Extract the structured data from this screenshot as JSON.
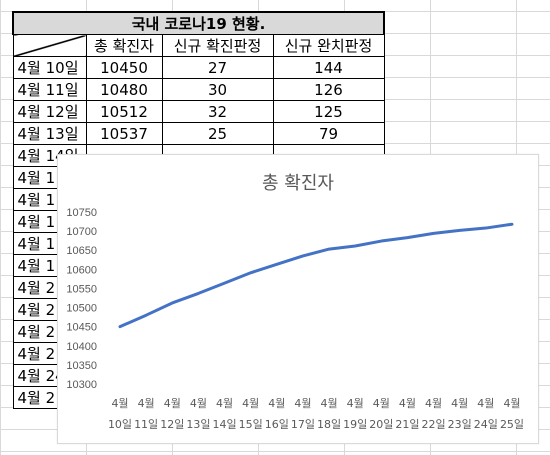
{
  "sheet": {
    "title": "국내 코로나19 현황.",
    "headers": [
      "",
      "총 확진자",
      "신규 확진판정",
      "신규 완치판정"
    ],
    "rows": [
      {
        "date": "4월 10일",
        "total": "10450",
        "new_confirmed": "27",
        "new_recovered": "144"
      },
      {
        "date": "4월 11일",
        "total": "10480",
        "new_confirmed": "30",
        "new_recovered": "126"
      },
      {
        "date": "4월 12일",
        "total": "10512",
        "new_confirmed": "32",
        "new_recovered": "125"
      },
      {
        "date": "4월 13일",
        "total": "10537",
        "new_confirmed": "25",
        "new_recovered": "79"
      },
      {
        "date": "4월 14일",
        "total": "",
        "new_confirmed": "",
        "new_recovered": ""
      },
      {
        "date": "4월 1",
        "total": "",
        "new_confirmed": "",
        "new_recovered": ""
      },
      {
        "date": "4월 1",
        "total": "",
        "new_confirmed": "",
        "new_recovered": ""
      },
      {
        "date": "4월 1",
        "total": "",
        "new_confirmed": "",
        "new_recovered": ""
      },
      {
        "date": "4월 1",
        "total": "",
        "new_confirmed": "",
        "new_recovered": ""
      },
      {
        "date": "4월 1",
        "total": "",
        "new_confirmed": "",
        "new_recovered": ""
      },
      {
        "date": "4월 2",
        "total": "",
        "new_confirmed": "",
        "new_recovered": ""
      },
      {
        "date": "4월 2",
        "total": "",
        "new_confirmed": "",
        "new_recovered": ""
      },
      {
        "date": "4월 2",
        "total": "",
        "new_confirmed": "",
        "new_recovered": ""
      },
      {
        "date": "4월 2",
        "total": "",
        "new_confirmed": "",
        "new_recovered": ""
      },
      {
        "date": "4월 24",
        "total": "",
        "new_confirmed": "",
        "new_recovered": ""
      },
      {
        "date": "4월 2",
        "total": "",
        "new_confirmed": "",
        "new_recovered": ""
      }
    ]
  },
  "chart_data": {
    "type": "line",
    "title": "총 확진자",
    "categories": [
      "4월 10일",
      "4월 11일",
      "4월 12일",
      "4월 13일",
      "4월 14일",
      "4월 15일",
      "4월 16일",
      "4월 17일",
      "4월 18일",
      "4월 19일",
      "4월 20일",
      "4월 21일",
      "4월 22일",
      "4월 23일",
      "4월 24일",
      "4월 25일"
    ],
    "category_lines": [
      [
        "4월",
        "10일"
      ],
      [
        "4월",
        "11일"
      ],
      [
        "4월",
        "12일"
      ],
      [
        "4월",
        "13일"
      ],
      [
        "4월",
        "14일"
      ],
      [
        "4월",
        "15일"
      ],
      [
        "4월",
        "16일"
      ],
      [
        "4월",
        "17일"
      ],
      [
        "4월",
        "18일"
      ],
      [
        "4월",
        "19일"
      ],
      [
        "4월",
        "20일"
      ],
      [
        "4월",
        "21일"
      ],
      [
        "4월",
        "22일"
      ],
      [
        "4월",
        "23일"
      ],
      [
        "4월",
        "24일"
      ],
      [
        "4월",
        "25일"
      ]
    ],
    "series": [
      {
        "values": [
          10450,
          10480,
          10512,
          10537,
          10564,
          10591,
          10613,
          10635,
          10653,
          10661,
          10674,
          10683,
          10694,
          10702,
          10708,
          10718
        ]
      }
    ],
    "ylim": [
      10300,
      10750
    ],
    "yticks": [
      10300,
      10350,
      10400,
      10450,
      10500,
      10550,
      10600,
      10650,
      10700,
      10750
    ],
    "grid": false,
    "line_color": "#4472c4"
  }
}
